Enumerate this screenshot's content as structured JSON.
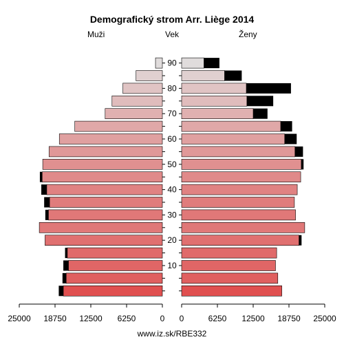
{
  "chart_data": {
    "type": "bar",
    "title": "Demografický strom Arr. Liège 2014",
    "left_label": "Muži",
    "center_label": "Vek",
    "right_label": "Ženy",
    "footer": "www.iz.sk/RBE332",
    "x_axis_ticks": [
      "25000",
      "18750",
      "12500",
      "6250",
      "0",
      "0",
      "6250",
      "12500",
      "18750",
      "25000"
    ],
    "xlim": [
      0,
      25000
    ],
    "age_ticks": [
      "10",
      "20",
      "30",
      "40",
      "50",
      "60",
      "70",
      "80",
      "90"
    ],
    "age_groups": [
      "0-4",
      "5-9",
      "10-14",
      "15-19",
      "20-24",
      "25-29",
      "30-34",
      "35-39",
      "40-44",
      "45-49",
      "50-54",
      "55-59",
      "60-64",
      "65-69",
      "70-74",
      "75-79",
      "80-84",
      "85-89",
      "90+"
    ],
    "series": [
      {
        "name": "Muži",
        "values": [
          17300,
          16800,
          16400,
          16600,
          20500,
          21500,
          19900,
          19700,
          20200,
          21000,
          20900,
          19800,
          18000,
          15300,
          10000,
          8800,
          6900,
          4600,
          1200
        ],
        "excess": [
          800,
          650,
          900,
          400,
          0,
          0,
          550,
          950,
          950,
          400,
          0,
          0,
          0,
          0,
          0,
          0,
          0,
          0,
          0
        ]
      },
      {
        "name": "Ženy",
        "values": [
          17500,
          16800,
          16400,
          16600,
          20500,
          21500,
          19900,
          19700,
          20200,
          20800,
          20900,
          19800,
          18000,
          17300,
          12500,
          11400,
          11300,
          7500,
          3900
        ],
        "excess": [
          0,
          0,
          0,
          0,
          450,
          0,
          0,
          0,
          0,
          0,
          400,
          1400,
          2100,
          2000,
          2500,
          4600,
          7800,
          3000,
          2700
        ]
      }
    ],
    "colors": {
      "excess": "#000000",
      "bar_outline": "#000000",
      "gradient": [
        "#e05050",
        "#e06060",
        "#e06666",
        "#e06a6a",
        "#e07070",
        "#e07878",
        "#e07878",
        "#e07c7c",
        "#e08282",
        "#e08a8a",
        "#e09090",
        "#e09898",
        "#e0a0a0",
        "#e0a8a8",
        "#e0b0b0",
        "#e0bcbc",
        "#e0c4c4",
        "#e0d0d0",
        "#e0dcdc"
      ]
    }
  }
}
